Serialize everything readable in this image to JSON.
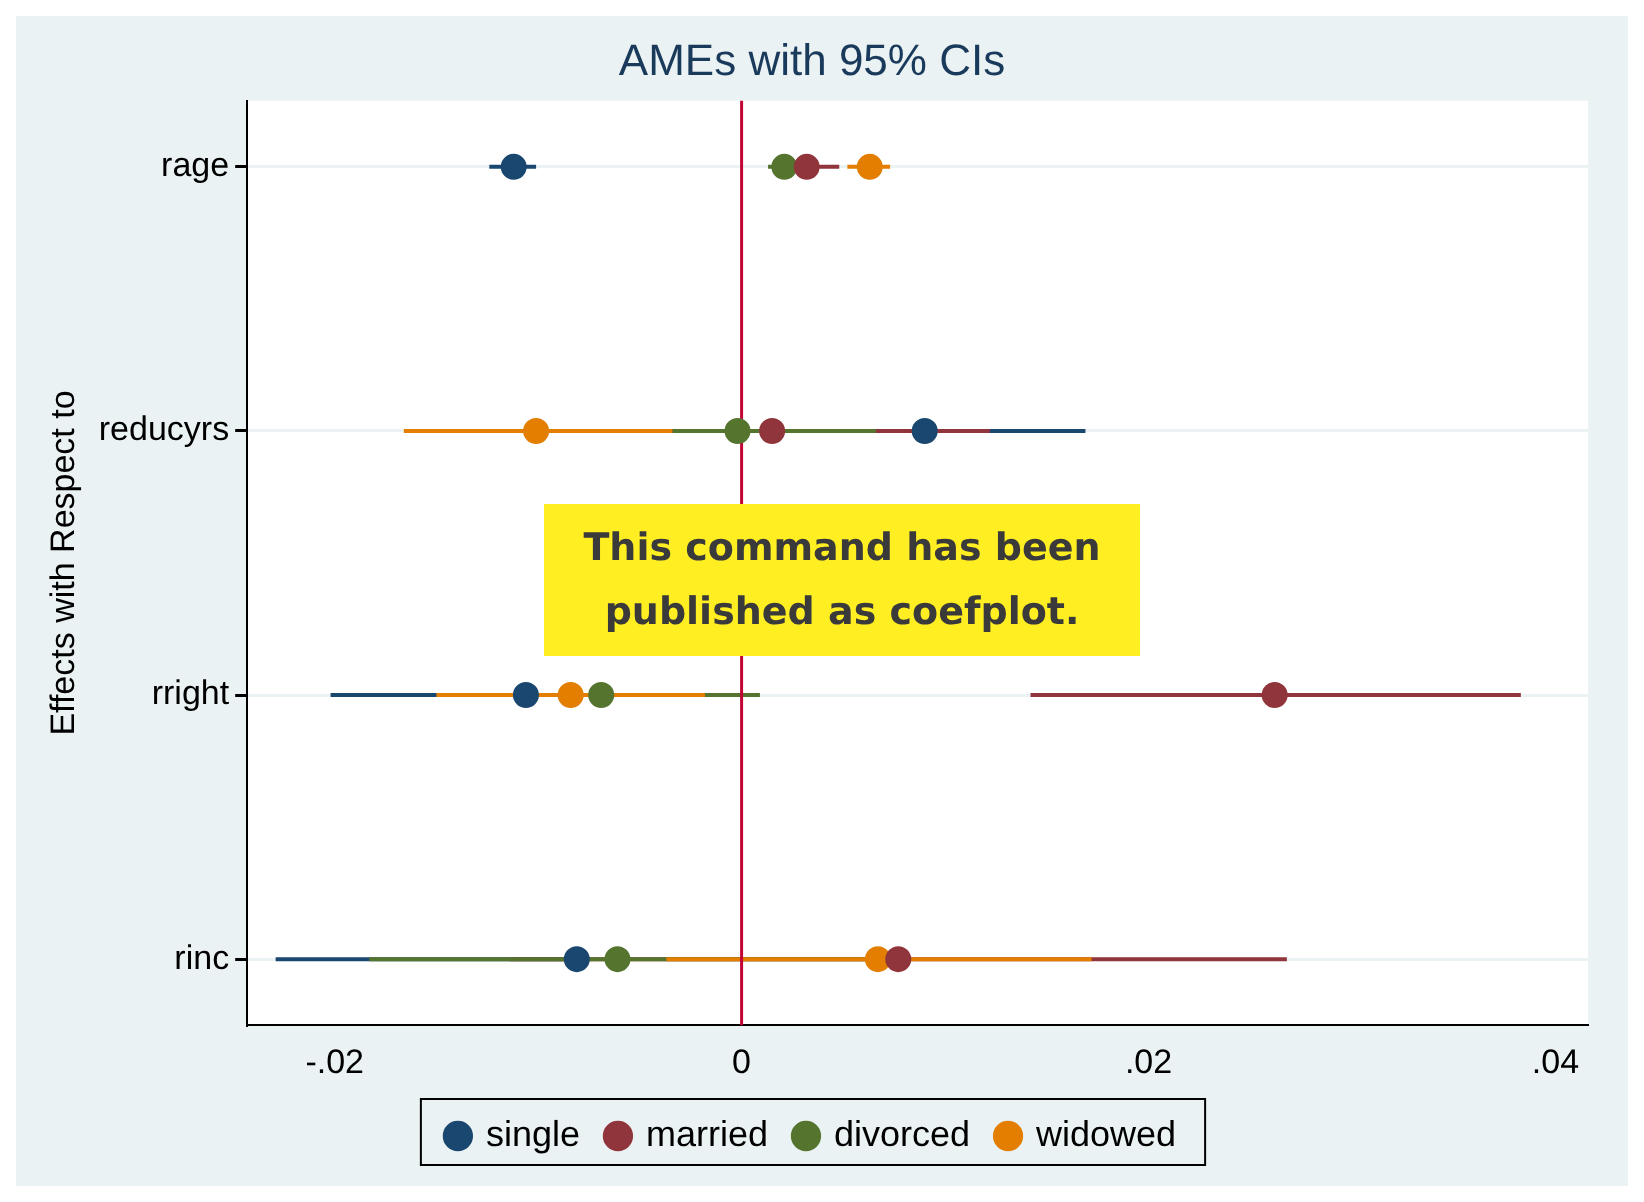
{
  "chart_data": {
    "type": "scatter",
    "orientation": "horizontal",
    "title": "AMEs with 95% CIs",
    "ylabel": "Effects with Respect to",
    "categories": [
      "rage",
      "reducyrs",
      "rright",
      "rinc"
    ],
    "series": [
      {
        "name": "single",
        "color": "#1a476f",
        "values": [
          -0.0112,
          0.009,
          -0.0106,
          -0.0081
        ],
        "errors": [
          [
            -0.0124,
            -0.0101
          ],
          [
            0.0011,
            0.0169
          ],
          [
            -0.0202,
            -0.001
          ],
          [
            -0.0229,
            -0.0081
          ]
        ]
      },
      {
        "name": "married",
        "color": "#90353b",
        "values": [
          0.0032,
          0.0015,
          0.0262,
          0.0077
        ],
        "errors": [
          [
            0.0016,
            0.0048
          ],
          [
            -0.0092,
            0.0122
          ],
          [
            0.0142,
            0.0383
          ],
          [
            -0.0114,
            0.0268
          ]
        ]
      },
      {
        "name": "divorced",
        "color": "#55752f",
        "values": [
          0.0021,
          -0.0002,
          -0.0069,
          -0.0061
        ],
        "errors": [
          [
            0.0013,
            0.0029
          ],
          [
            -0.0034,
            0.0066
          ],
          [
            -0.0147,
            0.0009
          ],
          [
            -0.0183,
            0.0061
          ]
        ]
      },
      {
        "name": "widowed",
        "color": "#e37e00",
        "values": [
          0.0063,
          -0.0101,
          -0.0084,
          0.0067
        ],
        "errors": [
          [
            0.0052,
            0.0073
          ],
          [
            -0.0166,
            -0.0034
          ],
          [
            -0.015,
            -0.0018
          ],
          [
            -0.0037,
            0.0172
          ]
        ]
      }
    ],
    "xlim": [
      -0.0243,
      0.0416
    ],
    "xticks": [
      {
        "value": -0.02,
        "label": "-.02"
      },
      {
        "value": 0,
        "label": "0"
      },
      {
        "value": 0.02,
        "label": ".02"
      },
      {
        "value": 0.04,
        "label": ".04"
      }
    ],
    "ref_lines": [
      {
        "axis": "x",
        "value": 0,
        "color": "#c10534"
      }
    ],
    "annotations": [
      "This command has been published as coefplot."
    ],
    "grid": "y",
    "legend": "bottom",
    "marker": "circle"
  }
}
